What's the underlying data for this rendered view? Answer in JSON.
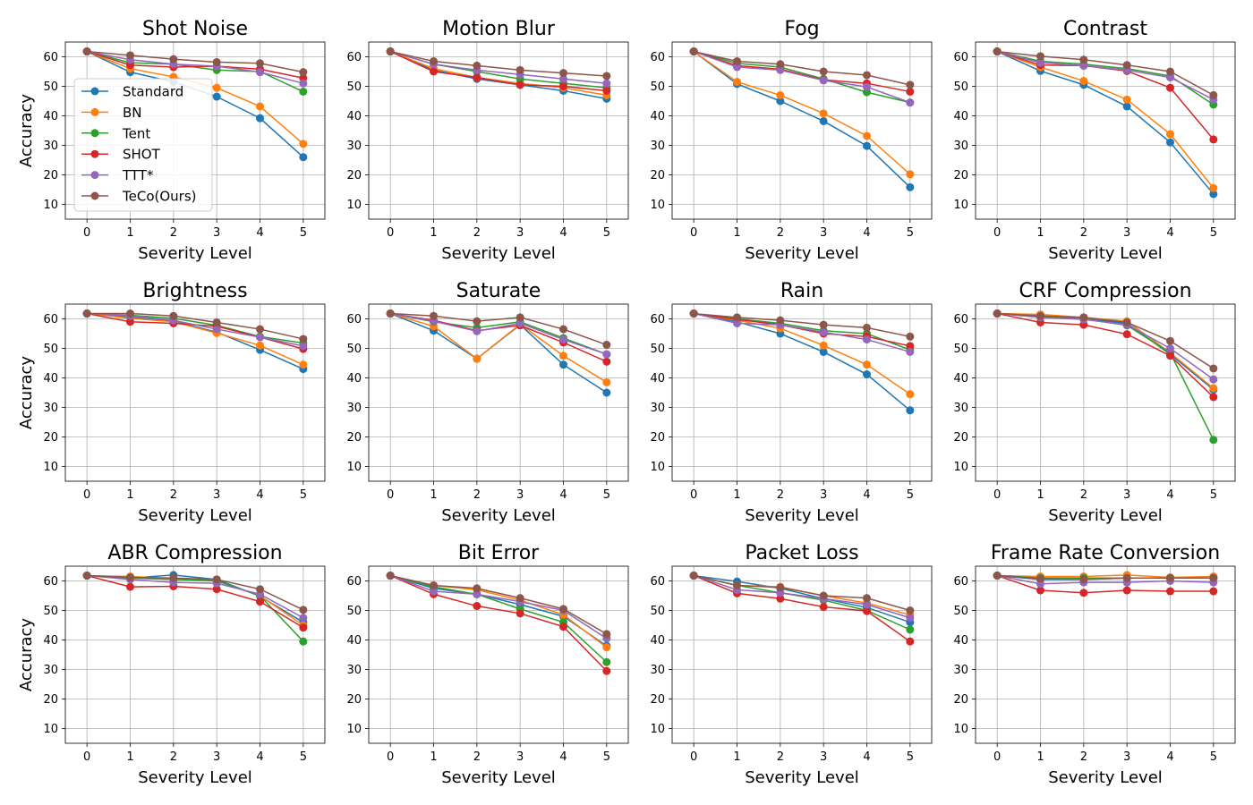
{
  "chart_data": {
    "type": "line",
    "xlabel": "Severity Level",
    "ylabel": "Accuracy",
    "x": [
      0,
      1,
      2,
      3,
      4,
      5
    ],
    "xlim": [
      -0.5,
      5.5
    ],
    "ylim": [
      5,
      65
    ],
    "yticks": [
      10,
      20,
      30,
      40,
      50,
      60
    ],
    "grid": true,
    "legend_location": "lower-left of first panel",
    "series_names": [
      "Standard",
      "BN",
      "Tent",
      "SHOT",
      "TTT*",
      "TeCo(Ours)"
    ],
    "colors": {
      "Standard": "#1f77b4",
      "BN": "#ff7f0e",
      "Tent": "#2ca02c",
      "SHOT": "#d62728",
      "TTT*": "#9467bd",
      "TeCo(Ours)": "#8c564b"
    },
    "panels": [
      {
        "title": "Shot Noise",
        "series": [
          {
            "name": "Standard",
            "values": [
              61.8,
              54.8,
              51.5,
              46.5,
              39.2,
              26.0
            ]
          },
          {
            "name": "BN",
            "values": [
              61.8,
              56.0,
              53.2,
              49.5,
              43.2,
              30.5
            ]
          },
          {
            "name": "Tent",
            "values": [
              61.8,
              58.0,
              57.5,
              55.5,
              55.0,
              48.2
            ]
          },
          {
            "name": "SHOT",
            "values": [
              61.8,
              57.2,
              56.5,
              56.8,
              55.8,
              52.8
            ]
          },
          {
            "name": "TTT*",
            "values": [
              61.8,
              59.0,
              57.5,
              56.8,
              54.8,
              51.0
            ]
          },
          {
            "name": "TeCo(Ours)",
            "values": [
              61.8,
              60.5,
              59.2,
              58.2,
              57.8,
              54.8
            ]
          }
        ]
      },
      {
        "title": "Motion Blur",
        "series": [
          {
            "name": "Standard",
            "values": [
              61.8,
              55.5,
              52.5,
              50.5,
              48.5,
              45.8
            ]
          },
          {
            "name": "BN",
            "values": [
              61.8,
              56.0,
              53.0,
              51.0,
              49.5,
              47.0
            ]
          },
          {
            "name": "Tent",
            "values": [
              61.8,
              57.5,
              55.0,
              52.5,
              51.0,
              49.5
            ]
          },
          {
            "name": "SHOT",
            "values": [
              61.8,
              55.0,
              53.0,
              50.5,
              50.0,
              48.5
            ]
          },
          {
            "name": "TTT*",
            "values": [
              61.8,
              57.5,
              55.5,
              54.0,
              52.5,
              51.0
            ]
          },
          {
            "name": "TeCo(Ours)",
            "values": [
              61.8,
              58.5,
              57.0,
              55.5,
              54.5,
              53.5
            ]
          }
        ]
      },
      {
        "title": "Fog",
        "series": [
          {
            "name": "Standard",
            "values": [
              61.8,
              50.8,
              45.0,
              38.2,
              29.8,
              15.8
            ]
          },
          {
            "name": "BN",
            "values": [
              61.8,
              51.5,
              47.0,
              40.8,
              33.2,
              20.2
            ]
          },
          {
            "name": "Tent",
            "values": [
              61.8,
              57.8,
              56.5,
              52.5,
              48.0,
              44.5
            ]
          },
          {
            "name": "SHOT",
            "values": [
              61.8,
              57.0,
              55.8,
              52.2,
              51.0,
              48.2
            ]
          },
          {
            "name": "TTT*",
            "values": [
              61.8,
              56.5,
              55.5,
              52.0,
              49.8,
              44.5
            ]
          },
          {
            "name": "TeCo(Ours)",
            "values": [
              61.8,
              58.5,
              57.5,
              55.0,
              53.8,
              50.5
            ]
          }
        ]
      },
      {
        "title": "Contrast",
        "series": [
          {
            "name": "Standard",
            "values": [
              61.8,
              55.2,
              50.5,
              43.2,
              31.0,
              13.5
            ]
          },
          {
            "name": "BN",
            "values": [
              61.8,
              56.5,
              51.8,
              45.5,
              33.8,
              15.5
            ]
          },
          {
            "name": "Tent",
            "values": [
              61.8,
              58.5,
              57.5,
              56.0,
              53.5,
              43.8
            ]
          },
          {
            "name": "SHOT",
            "values": [
              61.8,
              57.2,
              57.0,
              55.2,
              49.5,
              32.0
            ]
          },
          {
            "name": "TTT*",
            "values": [
              61.8,
              58.0,
              57.0,
              55.5,
              53.0,
              45.5
            ]
          },
          {
            "name": "TeCo(Ours)",
            "values": [
              61.8,
              60.2,
              59.0,
              57.2,
              55.0,
              47.0
            ]
          }
        ]
      },
      {
        "title": "Brightness",
        "series": [
          {
            "name": "Standard",
            "values": [
              61.8,
              60.5,
              59.2,
              55.5,
              49.5,
              43.0
            ]
          },
          {
            "name": "BN",
            "values": [
              61.8,
              60.2,
              59.0,
              55.2,
              51.0,
              44.5
            ]
          },
          {
            "name": "Tent",
            "values": [
              61.8,
              61.2,
              60.2,
              57.8,
              54.0,
              51.8
            ]
          },
          {
            "name": "SHOT",
            "values": [
              61.8,
              59.0,
              58.5,
              57.5,
              53.8,
              49.8
            ]
          },
          {
            "name": "TTT*",
            "values": [
              61.8,
              61.0,
              59.5,
              56.5,
              53.8,
              50.8
            ]
          },
          {
            "name": "TeCo(Ours)",
            "values": [
              61.8,
              61.8,
              61.0,
              58.8,
              56.5,
              53.2
            ]
          }
        ]
      },
      {
        "title": "Saturate",
        "series": [
          {
            "name": "Standard",
            "values": [
              61.8,
              56.0,
              46.5,
              58.0,
              44.5,
              35.0
            ]
          },
          {
            "name": "BN",
            "values": [
              61.8,
              57.5,
              46.5,
              58.2,
              47.5,
              38.5
            ]
          },
          {
            "name": "Tent",
            "values": [
              61.8,
              59.0,
              57.0,
              59.0,
              53.5,
              48.0
            ]
          },
          {
            "name": "SHOT",
            "values": [
              61.8,
              59.5,
              56.0,
              57.8,
              52.0,
              45.5
            ]
          },
          {
            "name": "TTT*",
            "values": [
              61.8,
              59.2,
              55.8,
              58.5,
              53.0,
              48.0
            ]
          },
          {
            "name": "TeCo(Ours)",
            "values": [
              61.8,
              61.0,
              59.2,
              60.5,
              56.5,
              51.2
            ]
          }
        ]
      },
      {
        "title": "Rain",
        "series": [
          {
            "name": "Standard",
            "values": [
              61.8,
              59.0,
              55.0,
              48.8,
              41.2,
              29.0
            ]
          },
          {
            "name": "BN",
            "values": [
              61.8,
              59.5,
              56.8,
              51.0,
              44.5,
              34.5
            ]
          },
          {
            "name": "Tent",
            "values": [
              61.8,
              60.0,
              58.5,
              56.0,
              55.0,
              49.5
            ]
          },
          {
            "name": "SHOT",
            "values": [
              61.8,
              59.8,
              58.0,
              55.0,
              54.0,
              50.8
            ]
          },
          {
            "name": "TTT*",
            "values": [
              61.8,
              58.5,
              58.0,
              55.5,
              53.0,
              48.8
            ]
          },
          {
            "name": "TeCo(Ours)",
            "values": [
              61.8,
              60.5,
              59.5,
              58.0,
              57.0,
              54.0
            ]
          }
        ]
      },
      {
        "title": "CRF Compression",
        "series": [
          {
            "name": "Standard",
            "values": [
              61.8,
              61.0,
              60.0,
              58.5,
              48.0,
              36.0
            ]
          },
          {
            "name": "BN",
            "values": [
              61.8,
              61.5,
              60.5,
              59.2,
              48.5,
              36.5
            ]
          },
          {
            "name": "Tent",
            "values": [
              61.8,
              60.8,
              60.0,
              57.8,
              48.5,
              19.0
            ]
          },
          {
            "name": "SHOT",
            "values": [
              61.8,
              58.8,
              58.0,
              54.8,
              47.5,
              33.5
            ]
          },
          {
            "name": "TTT*",
            "values": [
              61.8,
              60.5,
              59.8,
              58.0,
              50.0,
              39.5
            ]
          },
          {
            "name": "TeCo(Ours)",
            "values": [
              61.8,
              61.0,
              60.5,
              58.8,
              52.5,
              43.2
            ]
          }
        ]
      },
      {
        "title": "ABR Compression",
        "series": [
          {
            "name": "Standard",
            "values": [
              61.8,
              61.0,
              62.0,
              60.5,
              54.8,
              46.0
            ]
          },
          {
            "name": "BN",
            "values": [
              61.8,
              61.5,
              60.8,
              60.0,
              55.0,
              45.0
            ]
          },
          {
            "name": "Tent",
            "values": [
              61.8,
              61.0,
              60.5,
              60.0,
              55.0,
              39.5
            ]
          },
          {
            "name": "SHOT",
            "values": [
              61.8,
              58.0,
              58.2,
              57.2,
              53.0,
              44.2
            ]
          },
          {
            "name": "TTT*",
            "values": [
              61.8,
              60.5,
              59.5,
              59.2,
              55.5,
              47.5
            ]
          },
          {
            "name": "TeCo(Ours)",
            "values": [
              61.8,
              61.2,
              61.0,
              60.5,
              57.2,
              50.2
            ]
          }
        ]
      },
      {
        "title": "Bit Error",
        "series": [
          {
            "name": "Standard",
            "values": [
              61.8,
              57.5,
              55.5,
              52.0,
              48.0,
              38.0
            ]
          },
          {
            "name": "BN",
            "values": [
              61.8,
              58.5,
              57.0,
              53.5,
              48.5,
              37.5
            ]
          },
          {
            "name": "Tent",
            "values": [
              61.8,
              58.0,
              55.5,
              50.5,
              46.0,
              32.5
            ]
          },
          {
            "name": "SHOT",
            "values": [
              61.8,
              55.5,
              51.5,
              49.0,
              44.5,
              29.5
            ]
          },
          {
            "name": "TTT*",
            "values": [
              61.8,
              56.5,
              55.5,
              53.0,
              50.0,
              40.5
            ]
          },
          {
            "name": "TeCo(Ours)",
            "values": [
              61.8,
              58.5,
              57.5,
              54.2,
              50.5,
              42.0
            ]
          }
        ]
      },
      {
        "title": "Packet Loss",
        "series": [
          {
            "name": "Standard",
            "values": [
              61.8,
              59.8,
              57.5,
              54.0,
              51.0,
              46.0
            ]
          },
          {
            "name": "BN",
            "values": [
              61.8,
              58.5,
              58.0,
              55.0,
              52.5,
              48.5
            ]
          },
          {
            "name": "Tent",
            "values": [
              61.8,
              58.5,
              56.0,
              53.5,
              50.0,
              43.5
            ]
          },
          {
            "name": "SHOT",
            "values": [
              61.8,
              55.8,
              54.0,
              51.2,
              49.8,
              39.5
            ]
          },
          {
            "name": "TTT*",
            "values": [
              61.8,
              57.0,
              56.0,
              54.0,
              52.0,
              47.5
            ]
          },
          {
            "name": "TeCo(Ours)",
            "values": [
              61.8,
              58.5,
              57.8,
              55.0,
              54.2,
              50.0
            ]
          }
        ]
      },
      {
        "title": "Frame Rate Conversion",
        "series": [
          {
            "name": "Standard",
            "values": [
              61.8,
              60.5,
              60.5,
              61.0,
              61.0,
              61.0
            ]
          },
          {
            "name": "BN",
            "values": [
              61.8,
              61.5,
              61.5,
              62.0,
              61.2,
              61.5
            ]
          },
          {
            "name": "Tent",
            "values": [
              61.8,
              61.0,
              61.0,
              61.0,
              61.0,
              61.0
            ]
          },
          {
            "name": "SHOT",
            "values": [
              61.8,
              56.8,
              56.0,
              56.8,
              56.5,
              56.5
            ]
          },
          {
            "name": "TTT*",
            "values": [
              61.8,
              59.0,
              59.5,
              59.5,
              60.0,
              59.5
            ]
          },
          {
            "name": "TeCo(Ours)",
            "values": [
              61.8,
              60.8,
              60.5,
              61.0,
              61.0,
              61.0
            ]
          }
        ]
      }
    ]
  }
}
